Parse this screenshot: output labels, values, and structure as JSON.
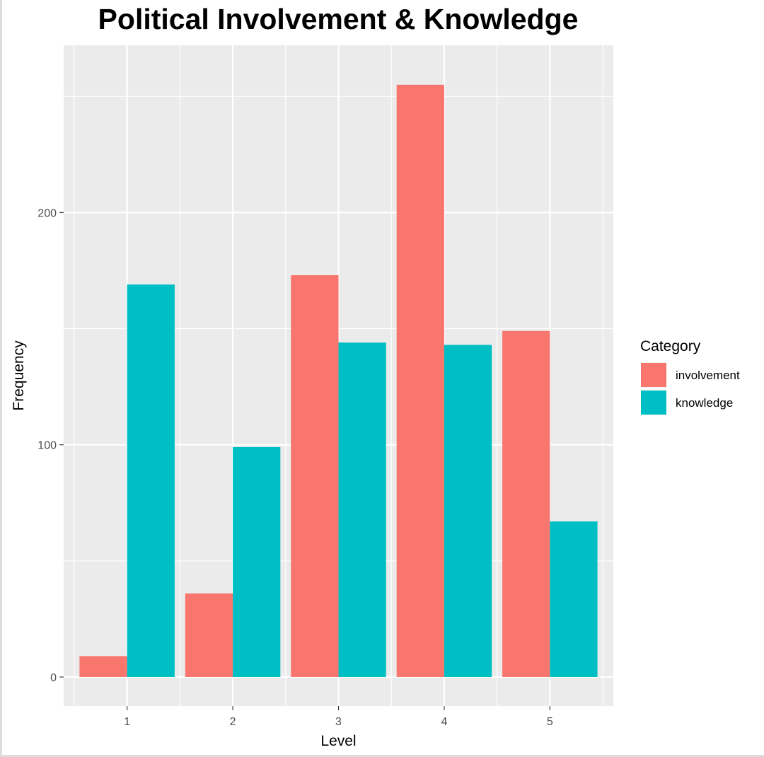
{
  "chart_data": {
    "type": "bar",
    "title": "Political Involvement & Knowledge",
    "xlabel": "Level",
    "ylabel": "Frequency",
    "categories": [
      "1",
      "2",
      "3",
      "4",
      "5"
    ],
    "series": [
      {
        "name": "involvement",
        "color": "#F8766D",
        "values": [
          9,
          36,
          173,
          255,
          149
        ]
      },
      {
        "name": "knowledge",
        "color": "#00BFC4",
        "values": [
          169,
          99,
          144,
          143,
          67
        ]
      }
    ],
    "yticks": [
      0,
      100,
      200
    ],
    "ylim": [
      -12.5,
      272
    ],
    "grid": true,
    "legend": {
      "title": "Category",
      "position": "right"
    }
  }
}
